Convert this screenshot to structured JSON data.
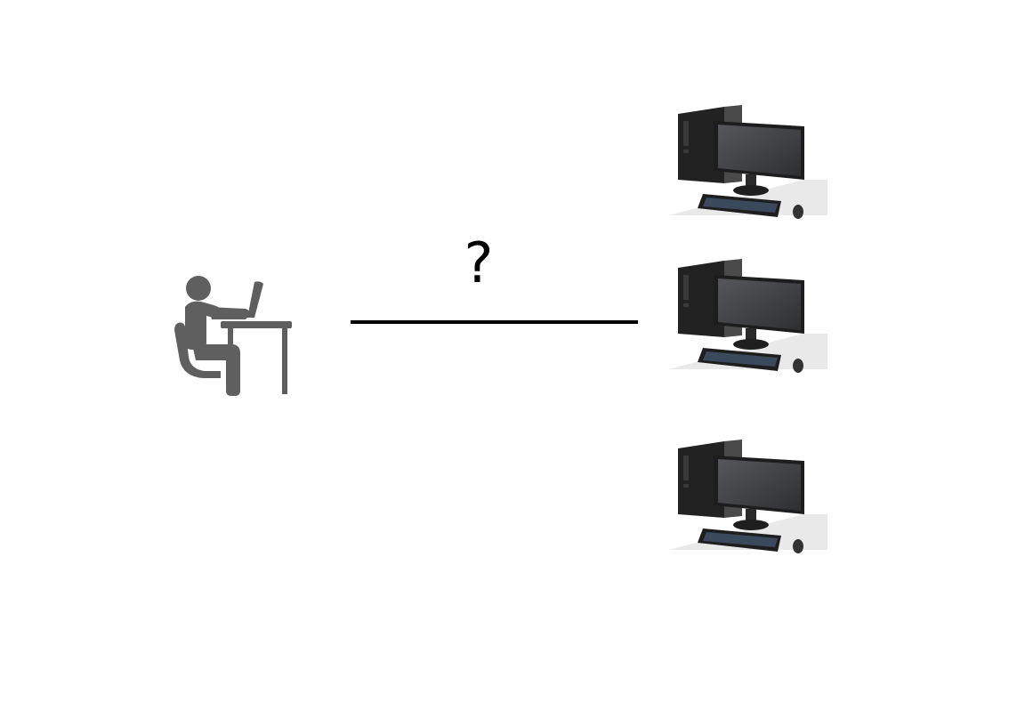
{
  "diagram": {
    "connector_label": "?",
    "nodes": [
      {
        "icon": "person-at-desk-icon",
        "role": "user"
      },
      {
        "icon": "desktop-computer-icon",
        "role": "computer"
      },
      {
        "icon": "desktop-computer-icon",
        "role": "computer"
      },
      {
        "icon": "desktop-computer-icon",
        "role": "computer"
      }
    ],
    "colors": {
      "person": "#5f5f5f",
      "line": "#000000",
      "computer_body": "#2a2a2a",
      "screen": "#3c3d40",
      "shadow": "#e9e9e9"
    }
  }
}
